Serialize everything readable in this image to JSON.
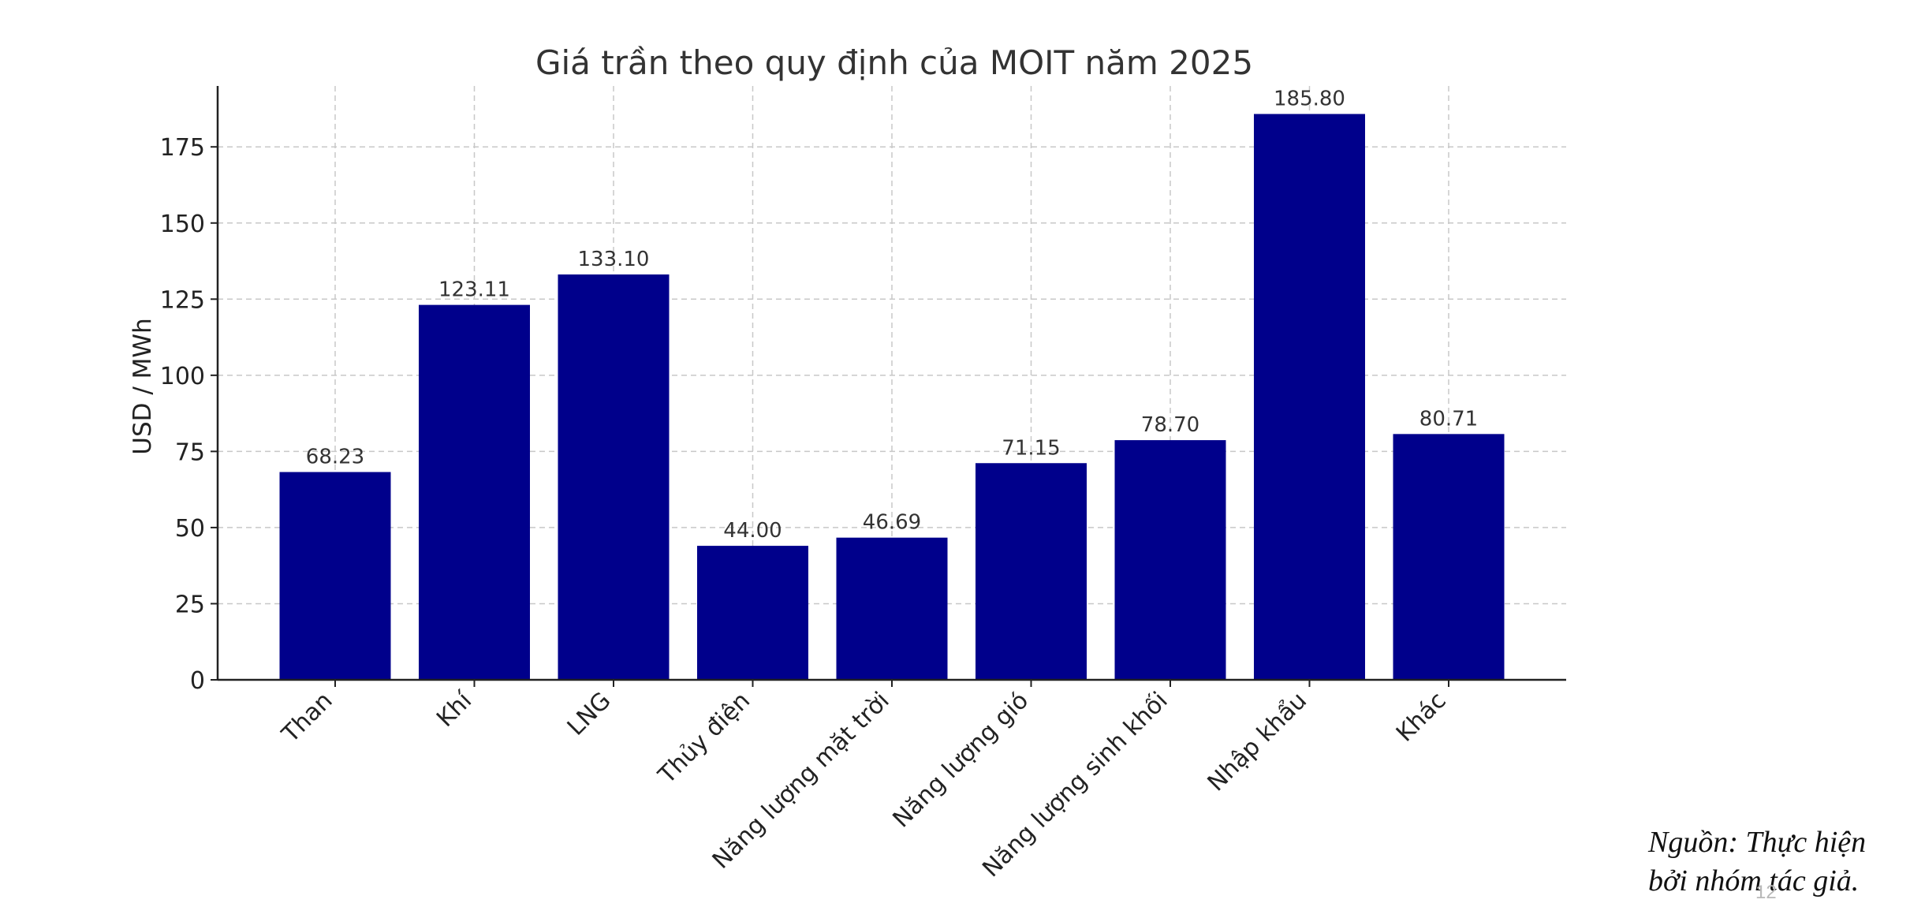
{
  "chart_data": {
    "type": "bar",
    "title": "Giá trần theo quy định của MOIT năm 2025",
    "xlabel": "",
    "ylabel": "USD / MWh",
    "categories": [
      "Than",
      "Khí",
      "LNG",
      "Thủy điện",
      "Năng lượng mặt trời",
      "Năng lượng gió",
      "Năng lượng sinh khối",
      "Nhập khẩu",
      "Khác"
    ],
    "values": [
      68.23,
      123.11,
      133.1,
      44.0,
      46.69,
      71.15,
      78.7,
      185.8,
      80.71
    ],
    "value_labels": [
      "68.23",
      "123.11",
      "133.10",
      "44.00",
      "46.69",
      "71.15",
      "78.70",
      "185.80",
      "80.71"
    ],
    "yticks": [
      0,
      25,
      50,
      75,
      100,
      125,
      150,
      175
    ],
    "ylim": [
      0,
      195
    ],
    "grid": true,
    "bar_color": "#00008B"
  },
  "source": {
    "line1": "Nguồn: Thực hiện",
    "line2": "bởi nhóm tác giả."
  },
  "page_number": "12"
}
